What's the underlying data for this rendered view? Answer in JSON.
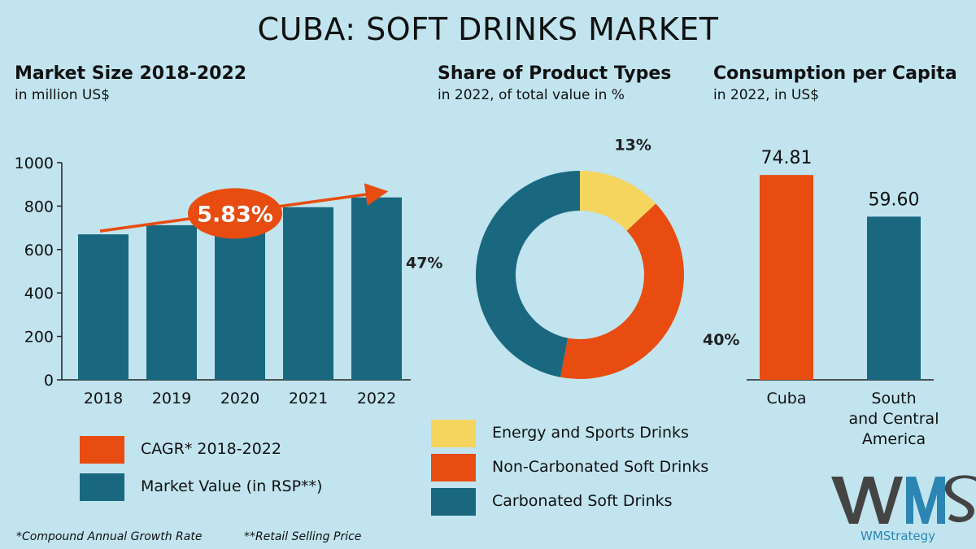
{
  "title": "CUBA: SOFT DRINKS MARKET",
  "colors": {
    "background": "#c1e4ef",
    "teal": "#1a6880",
    "orange": "#e84c10",
    "yellow": "#f5d55e",
    "gray": "#444444",
    "brand_blue": "#2b86b4"
  },
  "market": {
    "title": "Market Size 2018-2022",
    "subtitle": "in million US$",
    "legend": {
      "cagr": "CAGR* 2018-2022",
      "value": "Market Value (in RSP**)"
    }
  },
  "share": {
    "title": "Share of Product Types",
    "subtitle": "in 2022, of total value in %",
    "legend": [
      "Energy and Sports Drinks",
      "Non-Carbonated Soft Drinks",
      "Carbonated Soft Drinks"
    ]
  },
  "capita": {
    "title": "Consumption per Capita",
    "subtitle": "in 2022, in US$"
  },
  "footnotes": {
    "cagr": "*Compound Annual Growth Rate",
    "rsp": "**Retail Selling Price"
  },
  "brand": {
    "name": "WMStrategy"
  },
  "chart_data": [
    {
      "type": "bar",
      "title": "Market Size 2018-2022",
      "subtitle": "in million US$",
      "categories": [
        "2018",
        "2019",
        "2020",
        "2021",
        "2022"
      ],
      "values": [
        670,
        712,
        752,
        795,
        840
      ],
      "yticks": [
        0,
        200,
        400,
        600,
        800,
        1000
      ],
      "ylim": [
        0,
        1000
      ],
      "annotation": "5.83%",
      "grid": false
    },
    {
      "type": "pie",
      "title": "Share of Product Types",
      "subtitle": "in 2022, of total value in %",
      "donut": true,
      "labels": [
        "Energy and Sports Drinks",
        "Non-Carbonated Soft Drinks",
        "Carbonated Soft Drinks"
      ],
      "values": [
        13,
        40,
        47
      ],
      "value_labels": [
        "13%",
        "40%",
        "47%"
      ],
      "colors": [
        "#f5d55e",
        "#e84c10",
        "#1a6880"
      ],
      "legend_position": "bottom"
    },
    {
      "type": "bar",
      "title": "Consumption per Capita",
      "subtitle": "in 2022, in US$",
      "categories": [
        "Cuba",
        "South and Central America"
      ],
      "category_lines": [
        [
          "Cuba"
        ],
        [
          "South",
          "and Central",
          "America"
        ]
      ],
      "values": [
        74.81,
        59.6
      ],
      "value_labels": [
        "74.81",
        "59.60"
      ],
      "colors": [
        "#e84c10",
        "#1a6880"
      ],
      "ylim": [
        0,
        90
      ]
    }
  ]
}
